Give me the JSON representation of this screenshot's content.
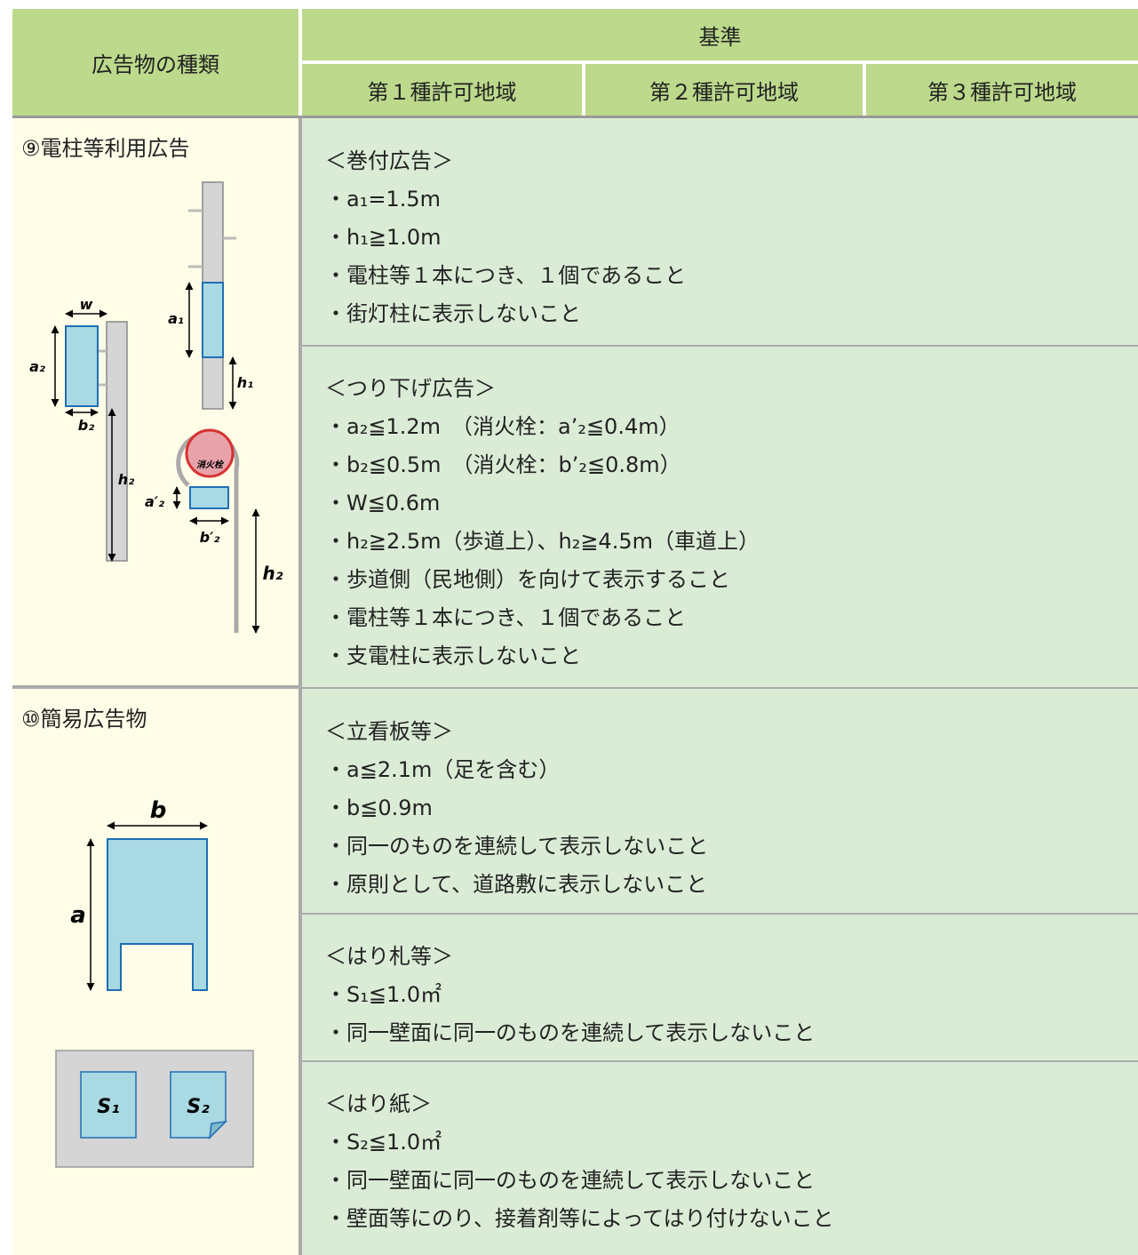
{
  "header": {
    "type_label": "広告物の種類",
    "criteria": "基準",
    "zones": [
      "第１種許可地域",
      "第２種許可地域",
      "第３種許可地域"
    ]
  },
  "rows": [
    {
      "label": "⑨電柱等利用広告",
      "diagram": {
        "labels": [
          "w",
          "a₂",
          "b₂",
          "h₂",
          "a₁",
          "h₁",
          "消火栓",
          "a′₂",
          "b′₂",
          "h₂"
        ]
      },
      "sections": [
        {
          "title": "＜巻付広告＞",
          "items": [
            "・a₁=1.5m",
            "・h₁≧1.0m",
            "・電柱等１本につき、１個であること",
            "・街灯柱に表示しないこと"
          ]
        },
        {
          "title": "＜つり下げ広告＞",
          "items": [
            "・a₂≦1.2m　（消火栓：a’₂≦0.4m）",
            "・b₂≦0.5m　（消火栓：b’₂≦0.8m）",
            "・W≦0.6m",
            "・h₂≧2.5m（歩道上）、h₂≧4.5m（車道上）",
            "・歩道側（民地側）を向けて表示すること",
            "・電柱等１本につき、１個であること",
            "・支電柱に表示しないこと"
          ]
        }
      ]
    },
    {
      "label": "⑩簡易広告物",
      "diagram": {
        "labels": [
          "b",
          "a",
          "S₁",
          "S₂"
        ]
      },
      "sections": [
        {
          "title": "＜立看板等＞",
          "items": [
            "・a≦2.1m（足を含む）",
            "・b≦0.9m",
            "・同一のものを連続して表示しないこと",
            "・原則として、道路敷に表示しないこと"
          ]
        },
        {
          "title": "＜はり札等＞",
          "items": [
            "・S₁≦1.0㎡",
            "・同一壁面に同一のものを連続して表示しないこと"
          ]
        },
        {
          "title": "＜はり紙＞",
          "items": [
            "・S₂≦1.0㎡",
            "・同一壁面に同一のものを連続して表示しないこと",
            "・壁面等にのり、接着剤等によってはり付けないこと"
          ]
        }
      ]
    }
  ]
}
